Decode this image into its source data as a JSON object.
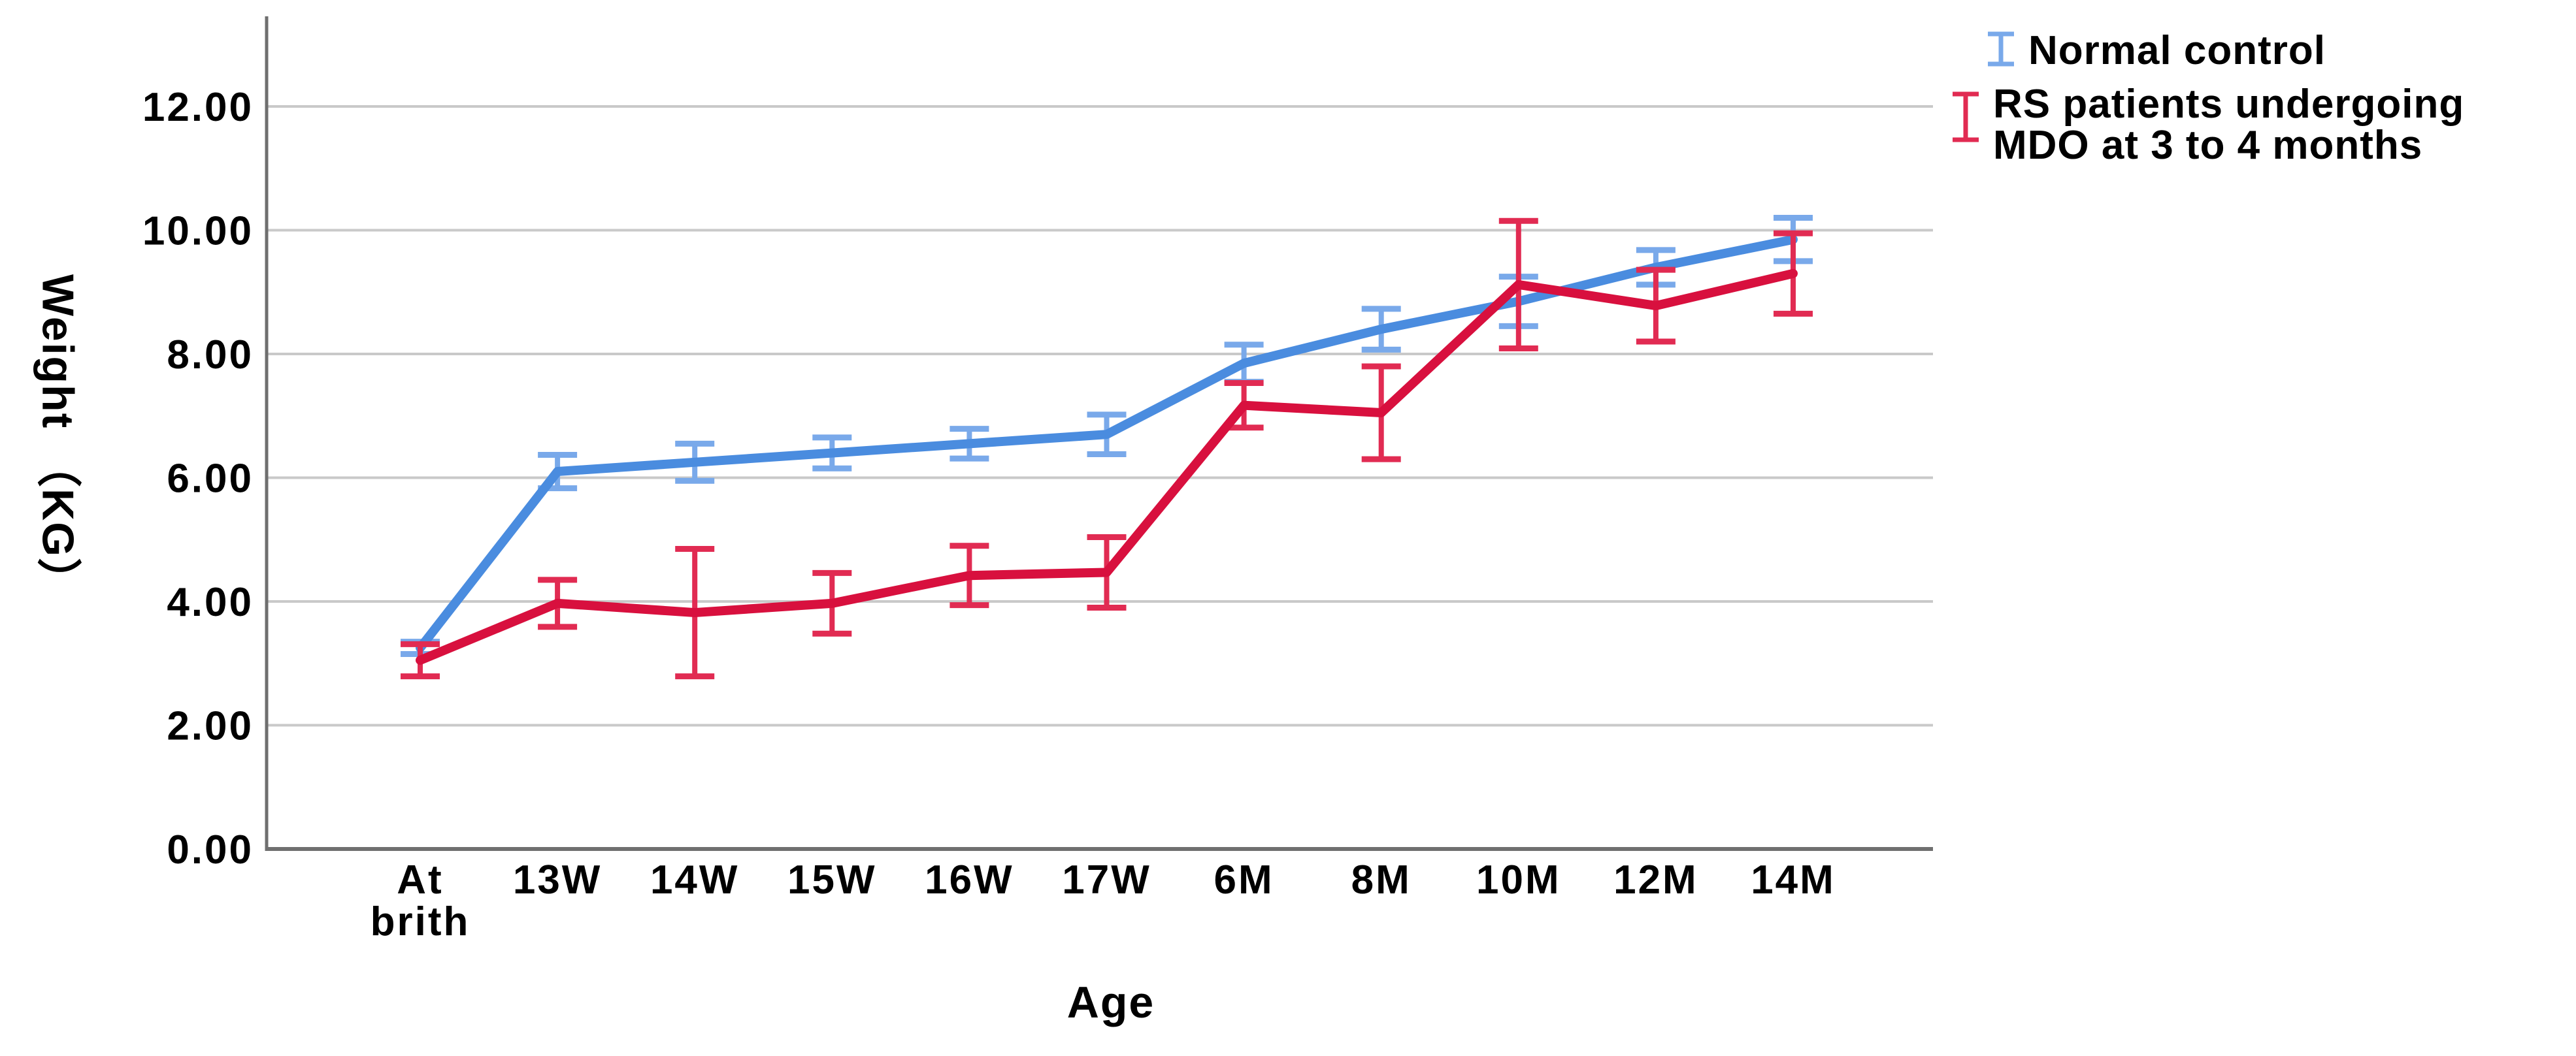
{
  "axes": {
    "x_title": "Age",
    "y_title": "Weight （KG）"
  },
  "legend": {
    "position": "top-right",
    "items": [
      {
        "line1": "Normal control",
        "line2": ""
      },
      {
        "line1": "RS patients undergoing",
        "line2": "MDO at 3 to 4 months"
      }
    ]
  },
  "chart_data": {
    "type": "line",
    "title": "",
    "xlabel": "Age",
    "ylabel": "Weight （KG）",
    "grid": true,
    "error_bars": true,
    "legend_position": "top-right",
    "categories": [
      "At brith",
      "13W",
      "14W",
      "15W",
      "16W",
      "17W",
      "6M",
      "8M",
      "10M",
      "12M",
      "14M"
    ],
    "category_label_lines": [
      [
        "At",
        "brith"
      ],
      [
        "13W"
      ],
      [
        "14W"
      ],
      [
        "15W"
      ],
      [
        "16W"
      ],
      [
        "17W"
      ],
      [
        "6M"
      ],
      [
        "8M"
      ],
      [
        "10M"
      ],
      [
        "12M"
      ],
      [
        "14M"
      ]
    ],
    "y_axis": {
      "min": 0,
      "max": 13.45,
      "tick_values": [
        0,
        2,
        4,
        6,
        8,
        10,
        12
      ],
      "tick_labels": [
        "0.00",
        "2.00",
        "4.00",
        "6.00",
        "8.00",
        "10.00",
        "12.00"
      ]
    },
    "colors": {
      "grid": "#c9c9c9",
      "axis": "#6f6f6f",
      "text": "#000000"
    },
    "series": [
      {
        "name": "Normal control",
        "color": "#4a8cdf",
        "errorbar_color": "#79a9ea",
        "values": [
          3.25,
          6.1,
          6.25,
          6.4,
          6.55,
          6.7,
          7.85,
          8.4,
          8.85,
          9.4,
          9.85
        ],
        "errors": [
          0.1,
          0.27,
          0.3,
          0.25,
          0.24,
          0.32,
          0.3,
          0.33,
          0.4,
          0.28,
          0.35
        ]
      },
      {
        "name": "RS patients undergoing MDO at 3 to 4 months",
        "color": "#d8103e",
        "errorbar_color": "#e12b52",
        "values": [
          3.05,
          3.97,
          3.82,
          3.97,
          4.42,
          4.47,
          7.17,
          7.05,
          9.12,
          8.78,
          9.3
        ],
        "errors": [
          0.26,
          0.38,
          1.03,
          0.49,
          0.48,
          0.57,
          0.36,
          0.75,
          1.03,
          0.58,
          0.65
        ]
      }
    ]
  }
}
